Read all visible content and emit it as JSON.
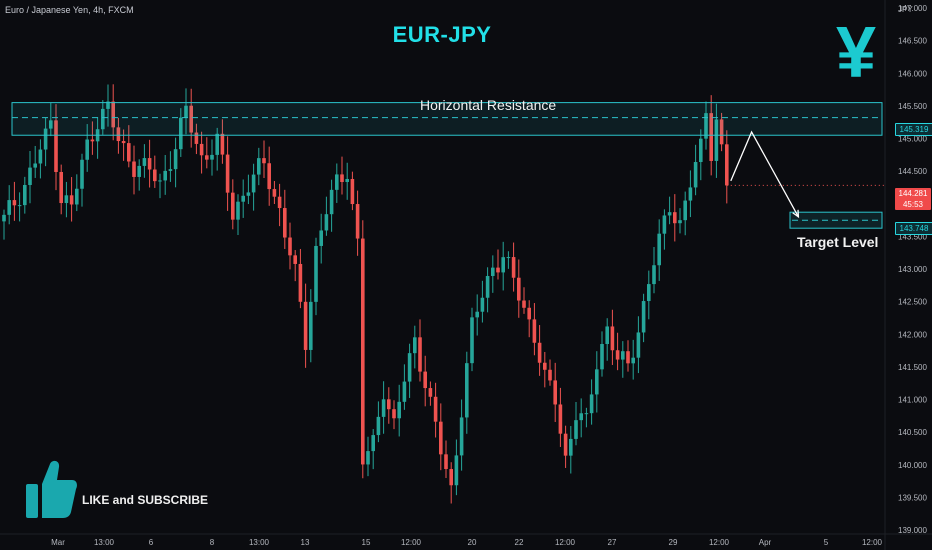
{
  "symbol_info": "Euro / Japanese Yen, 4h, FXCM",
  "title": "EUR-JPY",
  "icon": "yen-icon",
  "labels": {
    "resistance": "Horizontal Resistance",
    "target": "Target Level",
    "cta": "LIKE and SUBSCRIBE"
  },
  "price_tags": {
    "resistance": "145.319",
    "last_price": "144.281",
    "countdown": "45:53",
    "target": "143.748"
  },
  "colors": {
    "up": "#26a69a",
    "down": "#ef5350",
    "accent": "#22e0e8",
    "zone": "#2bc4cc"
  },
  "chart_data": {
    "type": "candlestick",
    "y_unit": "JPY",
    "ylim": [
      139.0,
      147.0
    ],
    "y_ticks": [
      139.0,
      139.5,
      140.0,
      140.5,
      141.0,
      141.5,
      142.0,
      142.5,
      143.0,
      143.5,
      144.0,
      144.5,
      145.0,
      145.5,
      146.0,
      146.5,
      147.0
    ],
    "x_ticks": [
      "Mar",
      "13:00",
      "6",
      "8",
      "13:00",
      "13",
      "15",
      "12:00",
      "20",
      "22",
      "12:00",
      "27",
      "29",
      "12:00",
      "Apr",
      "5",
      "12:00"
    ],
    "resistance_zone": [
      145.05,
      145.55
    ],
    "resistance_level": 145.319,
    "target_level": 143.748,
    "last_price": 144.281,
    "grid": false,
    "projection": [
      {
        "bar": 139,
        "price": 144.35
      },
      {
        "bar": 143,
        "price": 145.1
      },
      {
        "bar": 152,
        "price": 143.8
      }
    ],
    "waypoints": [
      [
        0,
        143.75
      ],
      [
        4,
        144.3
      ],
      [
        6,
        144.65
      ],
      [
        8,
        145.0
      ],
      [
        9,
        145.25
      ],
      [
        11,
        144.1
      ],
      [
        13,
        143.95
      ],
      [
        16,
        144.9
      ],
      [
        18,
        145.3
      ],
      [
        20,
        145.45
      ],
      [
        22,
        144.95
      ],
      [
        25,
        144.6
      ],
      [
        28,
        144.5
      ],
      [
        30,
        144.3
      ],
      [
        33,
        144.9
      ],
      [
        35,
        145.4
      ],
      [
        38,
        144.7
      ],
      [
        41,
        144.95
      ],
      [
        44,
        143.85
      ],
      [
        47,
        144.3
      ],
      [
        50,
        144.6
      ],
      [
        53,
        143.9
      ],
      [
        56,
        142.9
      ],
      [
        58,
        141.9
      ],
      [
        60,
        143.3
      ],
      [
        62,
        143.9
      ],
      [
        64,
        144.3
      ],
      [
        66,
        144.55
      ],
      [
        68,
        143.4
      ],
      [
        69,
        140.05
      ],
      [
        71,
        140.3
      ],
      [
        73,
        141.2
      ],
      [
        75,
        140.6
      ],
      [
        77,
        141.3
      ],
      [
        79,
        141.9
      ],
      [
        81,
        141.3
      ],
      [
        84,
        140.2
      ],
      [
        86,
        139.6
      ],
      [
        88,
        140.9
      ],
      [
        90,
        142.1
      ],
      [
        92,
        142.6
      ],
      [
        94,
        143.05
      ],
      [
        96,
        143.2
      ],
      [
        98,
        142.8
      ],
      [
        100,
        142.4
      ],
      [
        102,
        142.0
      ],
      [
        104,
        141.3
      ],
      [
        106,
        141.0
      ],
      [
        108,
        140.1
      ],
      [
        110,
        140.8
      ],
      [
        112,
        140.6
      ],
      [
        114,
        141.6
      ],
      [
        116,
        142.1
      ],
      [
        118,
        141.6
      ],
      [
        120,
        141.5
      ],
      [
        122,
        142.1
      ],
      [
        124,
        142.8
      ],
      [
        126,
        143.4
      ],
      [
        128,
        144.0
      ],
      [
        130,
        143.7
      ],
      [
        132,
        144.3
      ],
      [
        134,
        144.85
      ],
      [
        135,
        145.45
      ],
      [
        136,
        144.85
      ],
      [
        137,
        145.3
      ],
      [
        139,
        144.3
      ]
    ]
  }
}
